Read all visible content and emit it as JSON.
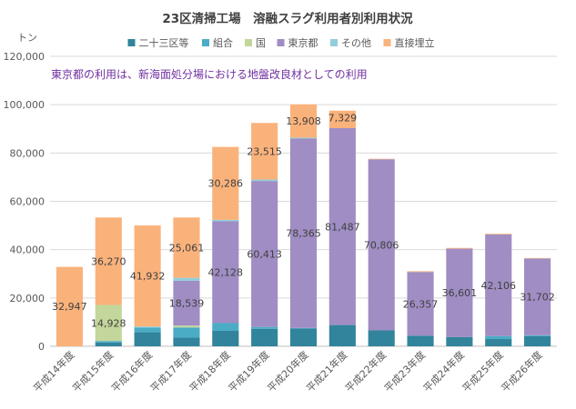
{
  "chart_data": {
    "type": "bar",
    "stacked": true,
    "title": "23区清掃工場　溶融スラグ利用者別利用状況",
    "ylabel": "トン",
    "annotation": "東京都の利用は、新海面処分場における地盤改良材としての利用",
    "ylim": [
      0,
      120000
    ],
    "yticks": [
      0,
      20000,
      40000,
      60000,
      80000,
      100000,
      120000
    ],
    "ytick_labels": [
      "0",
      "20,000",
      "40,000",
      "60,000",
      "80,000",
      "100,000",
      "120,000"
    ],
    "grid": true,
    "legend_position": "top",
    "categories": [
      "平成14年度",
      "平成15年度",
      "平成16年度",
      "平成17年度",
      "平成18年度",
      "平成19年度",
      "平成20年度",
      "平成21年度",
      "平成22年度",
      "平成23年度",
      "平成24年度",
      "平成25年度",
      "平成26年度"
    ],
    "series": [
      {
        "name": "二十三区等",
        "color": "#31849b",
        "values": [
          0,
          1600,
          5800,
          3600,
          6400,
          7200,
          7400,
          8800,
          6600,
          4400,
          3800,
          3000,
          4200
        ]
      },
      {
        "name": "組合",
        "color": "#4bacc6",
        "values": [
          0,
          600,
          2000,
          4200,
          3200,
          800,
          200,
          0,
          0,
          0,
          0,
          1200,
          400
        ]
      },
      {
        "name": "国",
        "color": "#c3d69b",
        "values": [
          0,
          14928,
          0,
          800,
          0,
          0,
          0,
          0,
          0,
          0,
          0,
          0,
          0
        ]
      },
      {
        "name": "東京都",
        "color": "#9f8dc3",
        "values": [
          0,
          0,
          0,
          18539,
          42128,
          60413,
          78365,
          81487,
          70806,
          26357,
          36601,
          42106,
          31702
        ]
      },
      {
        "name": "その他",
        "color": "#92cddc",
        "values": [
          0,
          0,
          400,
          1200,
          600,
          600,
          400,
          0,
          0,
          0,
          0,
          0,
          0
        ]
      },
      {
        "name": "直接埋立",
        "color": "#fab27b",
        "values": [
          32947,
          36270,
          41932,
          25061,
          30286,
          23515,
          13908,
          7329,
          300,
          400,
          400,
          400,
          300
        ]
      }
    ],
    "data_labels": [
      {
        "category": "平成14年度",
        "series": "直接埋立",
        "text": "32,947"
      },
      {
        "category": "平成15年度",
        "series": "直接埋立",
        "text": "36,270"
      },
      {
        "category": "平成15年度",
        "series": "国",
        "text": "14,928"
      },
      {
        "category": "平成16年度",
        "series": "直接埋立",
        "text": "41,932"
      },
      {
        "category": "平成17年度",
        "series": "直接埋立",
        "text": "25,061"
      },
      {
        "category": "平成17年度",
        "series": "東京都",
        "text": "18,539"
      },
      {
        "category": "平成18年度",
        "series": "直接埋立",
        "text": "30,286"
      },
      {
        "category": "平成18年度",
        "series": "東京都",
        "text": "42,128"
      },
      {
        "category": "平成19年度",
        "series": "直接埋立",
        "text": "23,515"
      },
      {
        "category": "平成19年度",
        "series": "東京都",
        "text": "60,413"
      },
      {
        "category": "平成20年度",
        "series": "直接埋立",
        "text": "13,908"
      },
      {
        "category": "平成20年度",
        "series": "東京都",
        "text": "78,365"
      },
      {
        "category": "平成21年度",
        "series": "直接埋立",
        "text": "7,329"
      },
      {
        "category": "平成21年度",
        "series": "東京都",
        "text": "81,487"
      },
      {
        "category": "平成22年度",
        "series": "東京都",
        "text": "70,806"
      },
      {
        "category": "平成23年度",
        "series": "東京都",
        "text": "26,357"
      },
      {
        "category": "平成24年度",
        "series": "東京都",
        "text": "36,601"
      },
      {
        "category": "平成25年度",
        "series": "東京都",
        "text": "42,106"
      },
      {
        "category": "平成26年度",
        "series": "東京都",
        "text": "31,702"
      }
    ],
    "colors": {
      "title": "#404040",
      "annotation": "#7030a0",
      "axis_text": "#595959",
      "grid": "#d9d9d9",
      "data_label": "#404040"
    }
  }
}
